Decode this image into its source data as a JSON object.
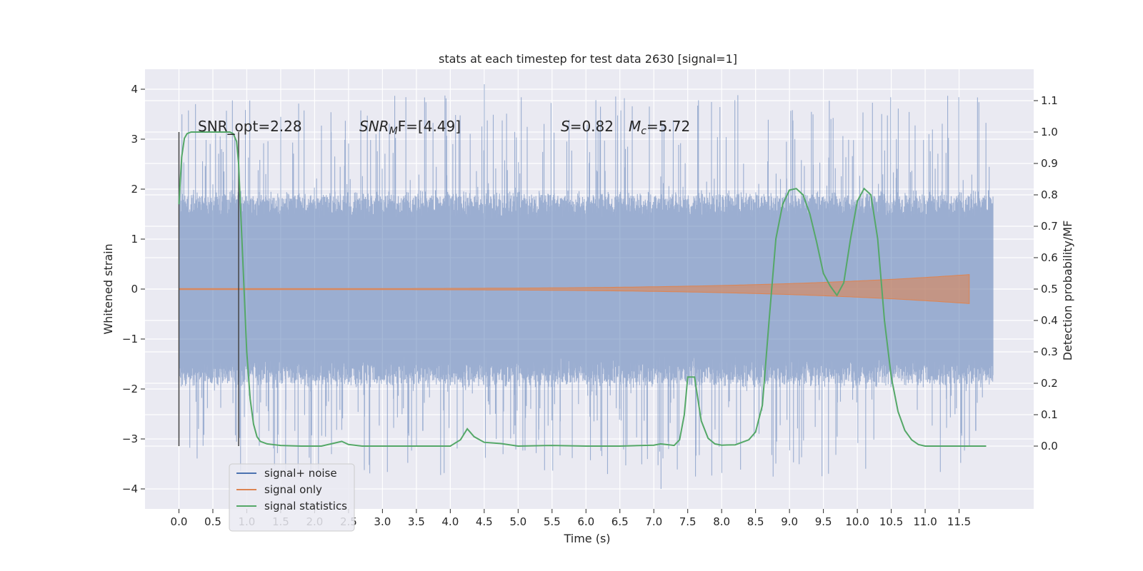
{
  "chart_data": {
    "type": "line",
    "title": "stats at each timestep for test data 2630 [signal=1]",
    "xlabel": "Time (s)",
    "ylabel_left": "Whitened strain",
    "ylabel_right": "Detection probability/MF",
    "xlim": [
      -0.5,
      12.6
    ],
    "ylim_left": [
      -4.4,
      4.4
    ],
    "ylim_right": [
      -0.2,
      1.2
    ],
    "x_ticks": [
      "0.0",
      "0.5",
      "1.0",
      "1.5",
      "2.0",
      "2.5",
      "3.0",
      "3.5",
      "4.0",
      "4.5",
      "5.0",
      "5.5",
      "6.0",
      "6.5",
      "7.0",
      "7.5",
      "8.0",
      "8.5",
      "9.0",
      "9.5",
      "10.0",
      "10.5",
      "11.0",
      "11.5"
    ],
    "y_ticks_left": [
      "4",
      "3",
      "2",
      "1",
      "0",
      "−1",
      "−2",
      "−3",
      "−4"
    ],
    "y_ticks_right": [
      "1.1",
      "1.0",
      "0.9",
      "0.8",
      "0.7",
      "0.6",
      "0.5",
      "0.4",
      "0.3",
      "0.2",
      "0.1",
      "0.0"
    ],
    "grid": true,
    "legend_position": "lower-left",
    "annotations": {
      "snr_opt": "SNR_opt=2.28",
      "snr_mf": "SNR",
      "snr_mf_sub": "M",
      "snr_mf_rest": "F=[4.49]",
      "s_val": "S",
      "s_rest": "=0.82",
      "mc": "M",
      "mc_sub": "c",
      "mc_rest": "=5.72"
    },
    "vertical_markers_x": [
      0.0,
      0.88
    ],
    "series": [
      {
        "name": "signal+ noise",
        "color": "#4c72b0",
        "x_range": [
          0.0,
          12.0
        ],
        "core_amplitude": 1.3,
        "spike_max": 4.1,
        "spike_min": -4.0
      },
      {
        "name": "signal only",
        "color": "#dd8452",
        "x_range": [
          0.0,
          11.65
        ],
        "envelope_end_amplitude": 0.28
      },
      {
        "name": "signal statistics",
        "color": "#55a868",
        "x": [
          0.0,
          0.04,
          0.08,
          0.12,
          0.18,
          0.25,
          0.4,
          0.6,
          0.75,
          0.8,
          0.85,
          0.88,
          0.9,
          0.95,
          1.0,
          1.05,
          1.1,
          1.15,
          1.2,
          1.3,
          1.5,
          1.8,
          2.1,
          2.3,
          2.4,
          2.5,
          2.7,
          3.0,
          3.5,
          4.0,
          4.15,
          4.25,
          4.35,
          4.5,
          4.75,
          5.0,
          5.5,
          6.0,
          6.5,
          7.0,
          7.1,
          7.3,
          7.38,
          7.45,
          7.5,
          7.6,
          7.65,
          7.7,
          7.8,
          7.9,
          8.0,
          8.2,
          8.4,
          8.5,
          8.6,
          8.7,
          8.8,
          8.9,
          9.0,
          9.1,
          9.2,
          9.3,
          9.4,
          9.5,
          9.6,
          9.7,
          9.8,
          9.9,
          10.0,
          10.1,
          10.2,
          10.3,
          10.4,
          10.5,
          10.6,
          10.7,
          10.8,
          10.9,
          11.0,
          11.2,
          11.5,
          11.9
        ],
        "y": [
          0.77,
          0.92,
          0.98,
          0.995,
          1.0,
          1.0,
          1.0,
          1.0,
          1.0,
          0.995,
          0.97,
          0.9,
          0.8,
          0.55,
          0.3,
          0.15,
          0.07,
          0.03,
          0.015,
          0.007,
          0.002,
          0.0,
          0.0,
          0.01,
          0.015,
          0.005,
          0.0,
          0.0,
          0.0,
          0.0,
          0.02,
          0.055,
          0.03,
          0.012,
          0.008,
          0.0,
          0.002,
          0.0,
          0.0,
          0.003,
          0.007,
          0.002,
          0.02,
          0.1,
          0.22,
          0.22,
          0.15,
          0.08,
          0.025,
          0.007,
          0.003,
          0.004,
          0.02,
          0.045,
          0.13,
          0.4,
          0.66,
          0.77,
          0.815,
          0.82,
          0.8,
          0.74,
          0.65,
          0.55,
          0.51,
          0.48,
          0.52,
          0.66,
          0.78,
          0.82,
          0.8,
          0.66,
          0.4,
          0.22,
          0.11,
          0.05,
          0.02,
          0.005,
          0.0,
          0.0,
          0.0,
          0.0
        ]
      }
    ]
  }
}
